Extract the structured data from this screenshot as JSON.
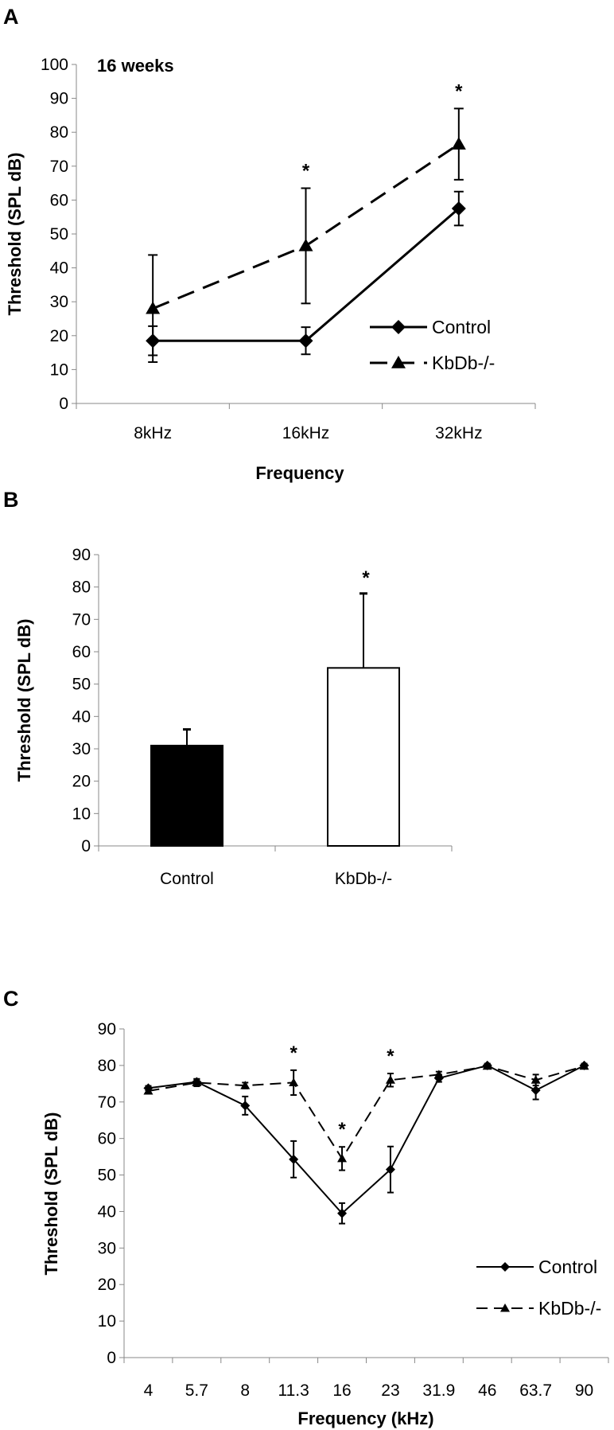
{
  "chart_data": [
    {
      "panel_label": "A",
      "type": "line",
      "annotation": "16 weeks",
      "categories": [
        "8kHz",
        "16kHz",
        "32kHz"
      ],
      "xlabel": "Frequency",
      "ylabel": "Threshold (SPL dB)",
      "ylim": [
        0,
        100
      ],
      "yticks": [
        0,
        10,
        20,
        30,
        40,
        50,
        60,
        70,
        80,
        90,
        100
      ],
      "legend_position": "right",
      "grid": false,
      "series": [
        {
          "name": "Control",
          "marker": "diamond",
          "line": "solid",
          "values": [
            18.5,
            18.5,
            57.5
          ],
          "errors": [
            4.3,
            4,
            5
          ]
        },
        {
          "name": "KbDb-/-",
          "marker": "triangle",
          "line": "dashed",
          "values": [
            28,
            46.5,
            76.5
          ],
          "errors": [
            15.8,
            17,
            10.5
          ]
        }
      ],
      "significance": [
        "",
        "*",
        "*"
      ]
    },
    {
      "panel_label": "B",
      "type": "bar",
      "categories": [
        "Control",
        "KbDb-/-"
      ],
      "ylabel": "Threshold (SPL dB)",
      "ylim": [
        0,
        90
      ],
      "yticks": [
        0,
        10,
        20,
        30,
        40,
        50,
        60,
        70,
        80,
        90
      ],
      "values": [
        31,
        55
      ],
      "errors": [
        5,
        23
      ],
      "bar_colors": [
        "#000000",
        "#ffffff"
      ],
      "significance": [
        "",
        "*"
      ],
      "grid": false
    },
    {
      "panel_label": "C",
      "type": "line",
      "categories": [
        "4",
        "5.7",
        "8",
        "11.3",
        "16",
        "23",
        "31.9",
        "46",
        "63.7",
        "90"
      ],
      "xlabel": "Frequency (kHz)",
      "ylabel": "Threshold (SPL dB)",
      "ylim": [
        0,
        90
      ],
      "yticks": [
        0,
        10,
        20,
        30,
        40,
        50,
        60,
        70,
        80,
        90
      ],
      "legend_position": "bottom-right",
      "grid": false,
      "series": [
        {
          "name": "Control",
          "marker": "diamond",
          "line": "solid",
          "values": [
            73.8,
            75.5,
            69,
            54.3,
            39.5,
            51.5,
            76.5,
            80,
            73.2,
            80
          ],
          "errors": [
            0.6,
            0.8,
            2.5,
            5,
            2.8,
            6.3,
            1,
            0.5,
            2.5,
            0.5
          ]
        },
        {
          "name": "KbDb-/-",
          "marker": "triangle",
          "line": "dashed",
          "values": [
            73,
            75.3,
            74.5,
            75.3,
            54.5,
            76,
            77.5,
            79.8,
            76,
            79.8
          ],
          "errors": [
            0.6,
            1,
            0.8,
            3.4,
            3.2,
            1.8,
            0.8,
            0.5,
            1.5,
            0.5
          ]
        }
      ],
      "significance": [
        "",
        "",
        "",
        "*",
        "*",
        "*",
        "",
        "",
        "",
        ""
      ]
    }
  ]
}
